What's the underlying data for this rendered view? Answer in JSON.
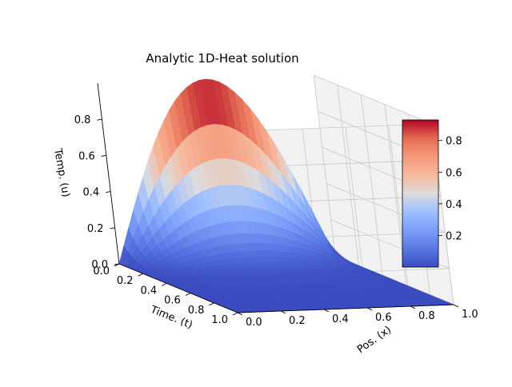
{
  "chart_data": {
    "type": "surface3d",
    "title": "Analytic 1D-Heat solution",
    "xlabel": "Pos. (x)",
    "ylabel": "Time. (t)",
    "zlabel": "Temp. (u)",
    "function": "u(x,t) = sin(pi*x) * exp(-pi^2 * t)",
    "x_range": [
      0,
      1
    ],
    "t_range": [
      0,
      1
    ],
    "z_range": [
      0,
      1
    ],
    "x_ticks": [
      "0.0",
      "0.2",
      "0.4",
      "0.6",
      "0.8",
      "1.0"
    ],
    "t_ticks": [
      "0.0",
      "0.2",
      "0.4",
      "0.6",
      "0.8",
      "1.0"
    ],
    "z_ticks": [
      "0.0",
      "0.2",
      "0.4",
      "0.6",
      "0.8"
    ],
    "colormap": "coolwarm",
    "colorbar": {
      "range": [
        0,
        0.93
      ],
      "ticks": [
        "0.2",
        "0.4",
        "0.6",
        "0.8"
      ],
      "tick_values": [
        0.2,
        0.4,
        0.6,
        0.8
      ]
    },
    "colors": {
      "pane": "#f2f2f2",
      "grid": "#c8c8c8",
      "low": "#3b4cc0",
      "mid": "#dddcdc",
      "high": "#b40426"
    }
  }
}
